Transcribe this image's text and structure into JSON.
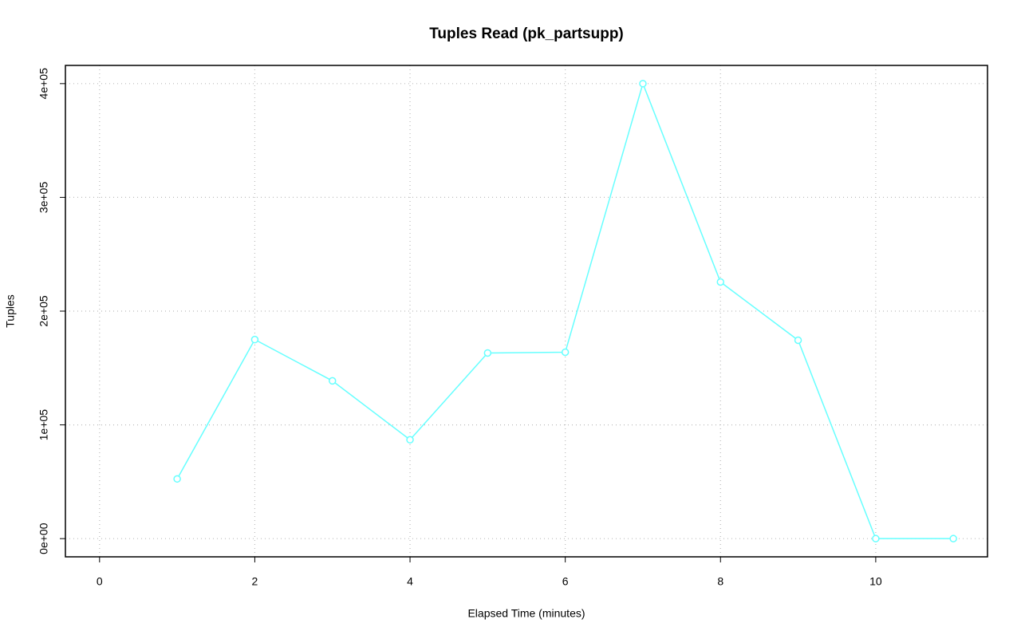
{
  "chart_data": {
    "type": "line",
    "title": "Tuples Read (pk_partsupp)",
    "x_label": "Elapsed Time (minutes)",
    "y_label": "Tuples",
    "x": [
      1,
      2,
      3,
      4,
      5,
      6,
      7,
      8,
      9,
      10,
      11
    ],
    "series": [
      {
        "name": "pk_partsupp",
        "color": "#66ffff",
        "values": [
          52500,
          175000,
          138700,
          86900,
          163200,
          163900,
          400000,
          225600,
          174400,
          0,
          0
        ]
      }
    ],
    "xlim": [
      -0.44,
      11.44
    ],
    "xticks": [
      0,
      2,
      4,
      6,
      8,
      10
    ],
    "ylim": [
      -16000,
      416000
    ],
    "yticks": [
      {
        "value": 0,
        "label": "0e+00"
      },
      {
        "value": 100000,
        "label": "1e+05"
      },
      {
        "value": 200000,
        "label": "2e+05"
      },
      {
        "value": 300000,
        "label": "3e+05"
      },
      {
        "value": 400000,
        "label": "4e+05"
      }
    ],
    "grid": true
  }
}
